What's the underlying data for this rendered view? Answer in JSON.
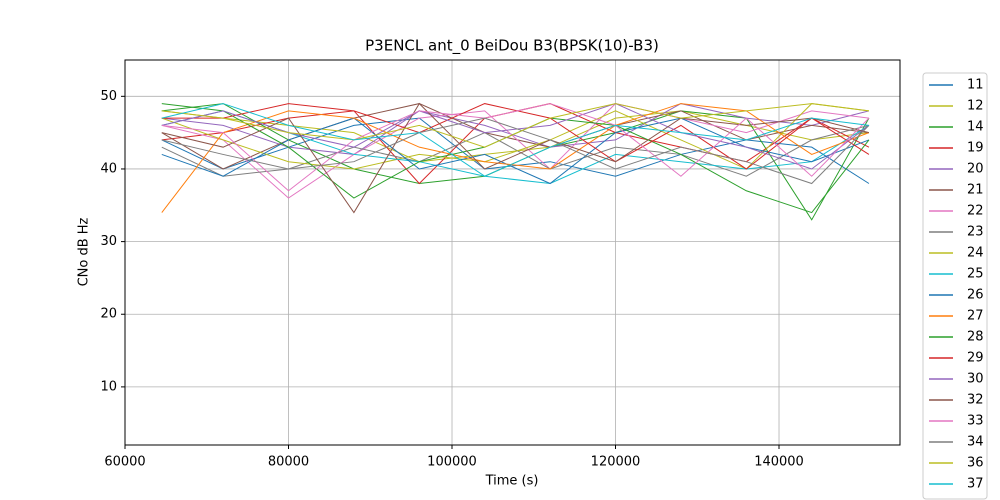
{
  "chart_data": {
    "type": "line",
    "title": "P3ENCL ant_0 BeiDou B3(BPSK(10)-B3)",
    "x_label": "Time (s)",
    "y_label": "CNo dB Hz",
    "x": [
      64500,
      72000,
      80000,
      88000,
      96000,
      104000,
      112000,
      120000,
      128000,
      136000,
      144000,
      151000
    ],
    "xlim": [
      60000,
      154800
    ],
    "ylim": [
      2,
      55
    ],
    "xticks": [
      60000,
      80000,
      100000,
      120000,
      140000
    ],
    "yticks": [
      10,
      20,
      30,
      40,
      50
    ],
    "grid": true,
    "legend": "outside-right",
    "series": [
      {
        "name": "11",
        "color": "#1f77b4",
        "values": [
          44,
          40,
          43,
          46,
          47,
          40,
          41,
          39,
          42,
          44,
          43,
          38
        ]
      },
      {
        "name": "12",
        "color": "#bcbd22",
        "values": [
          48,
          47,
          46,
          45,
          41,
          42,
          43,
          47,
          48,
          46,
          44,
          45
        ]
      },
      {
        "name": "14",
        "color": "#2ca02c",
        "values": [
          48,
          49,
          44,
          40,
          38,
          39,
          43,
          45,
          48,
          47,
          33,
          47
        ]
      },
      {
        "name": "19",
        "color": "#d62728",
        "values": [
          44,
          45,
          47,
          48,
          38,
          47,
          49,
          45,
          43,
          41,
          47,
          43
        ]
      },
      {
        "name": "20",
        "color": "#9467bd",
        "values": [
          47,
          46,
          43,
          42,
          48,
          46,
          43,
          44,
          49,
          47,
          46,
          48
        ]
      },
      {
        "name": "21",
        "color": "#8c564b",
        "values": [
          45,
          40,
          44,
          47,
          49,
          45,
          43,
          46,
          48,
          44,
          46,
          45
        ]
      },
      {
        "name": "22",
        "color": "#e377c2",
        "values": [
          46,
          44,
          36,
          42,
          47,
          48,
          40,
          49,
          47,
          45,
          48,
          47
        ]
      },
      {
        "name": "23",
        "color": "#7f7f7f",
        "values": [
          43,
          39,
          40,
          43,
          41,
          45,
          40,
          43,
          42,
          39,
          44,
          46
        ]
      },
      {
        "name": "24",
        "color": "#bcbd22",
        "values": [
          47,
          44,
          41,
          40,
          42,
          41,
          44,
          48,
          44,
          40,
          49,
          48
        ]
      },
      {
        "name": "25",
        "color": "#17becf",
        "values": [
          46,
          48,
          45,
          42,
          41,
          39,
          38,
          42,
          41,
          40,
          41,
          46
        ]
      },
      {
        "name": "26",
        "color": "#1f77b4",
        "values": [
          42,
          39,
          44,
          47,
          40,
          42,
          38,
          45,
          47,
          43,
          41,
          44
        ]
      },
      {
        "name": "27",
        "color": "#ff7f0e",
        "values": [
          34,
          45,
          48,
          47,
          43,
          41,
          40,
          46,
          49,
          48,
          42,
          45
        ]
      },
      {
        "name": "28",
        "color": "#2ca02c",
        "values": [
          49,
          48,
          43,
          36,
          41,
          43,
          47,
          46,
          42,
          37,
          34,
          44
        ]
      },
      {
        "name": "29",
        "color": "#d62728",
        "values": [
          47,
          47,
          49,
          48,
          45,
          49,
          47,
          41,
          46,
          40,
          47,
          42
        ]
      },
      {
        "name": "30",
        "color": "#9467bd",
        "values": [
          46,
          48,
          45,
          43,
          48,
          45,
          46,
          49,
          45,
          43,
          40,
          46
        ]
      },
      {
        "name": "32",
        "color": "#8c564b",
        "values": [
          45,
          43,
          47,
          34,
          49,
          40,
          44,
          41,
          47,
          46,
          47,
          45
        ]
      },
      {
        "name": "33",
        "color": "#e377c2",
        "values": [
          46,
          45,
          37,
          44,
          48,
          47,
          49,
          46,
          39,
          47,
          39,
          47
        ]
      },
      {
        "name": "34",
        "color": "#7f7f7f",
        "values": [
          44,
          42,
          40,
          41,
          45,
          47,
          44,
          40,
          43,
          41,
          38,
          46
        ]
      },
      {
        "name": "36",
        "color": "#bcbd22",
        "values": [
          48,
          47,
          45,
          44,
          46,
          43,
          47,
          49,
          47,
          48,
          49,
          48
        ]
      },
      {
        "name": "37",
        "color": "#17becf",
        "values": [
          47,
          49,
          46,
          44,
          45,
          39,
          43,
          46,
          45,
          44,
          47,
          46
        ]
      }
    ]
  }
}
